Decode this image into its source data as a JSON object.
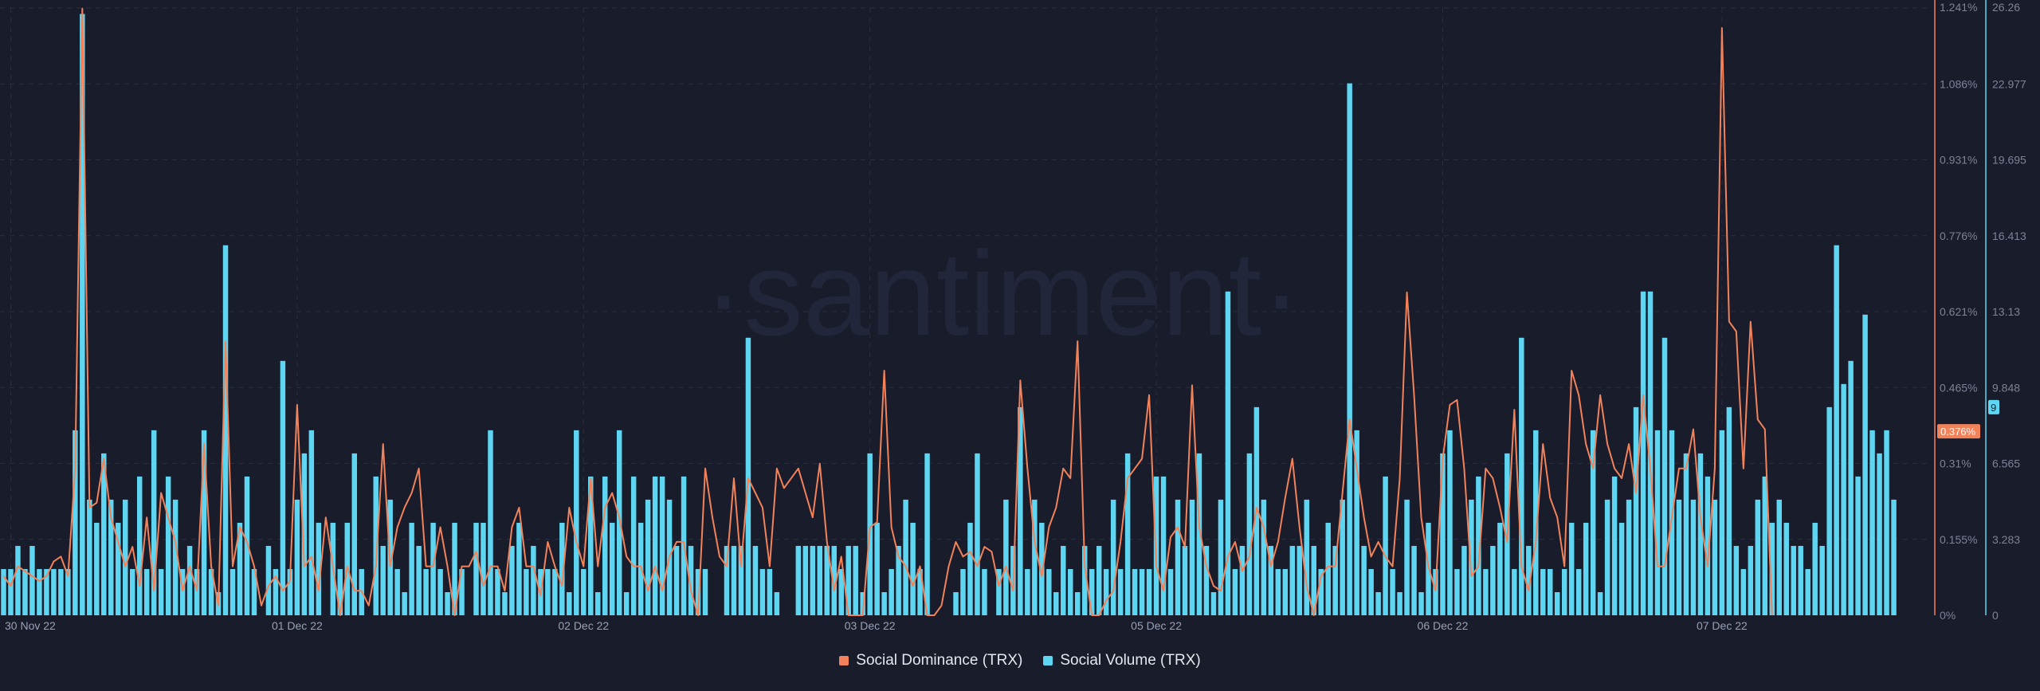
{
  "watermark": "·santiment·",
  "colors": {
    "background": "#191c2b",
    "volume": "#5ed6f2",
    "dominance": "#f2825a",
    "grid": "#2a2e40",
    "axis_text": "#7d8296"
  },
  "chart_data": {
    "type": "bar",
    "title": "",
    "x_tick_labels": [
      "30 Nov 22",
      "01 Dec 22",
      "02 Dec 22",
      "03 Dec 22",
      "05 Dec 22",
      "06 Dec 22",
      "07 Dec 22"
    ],
    "x_tick_positions": [
      1,
      41,
      81,
      121,
      161,
      201,
      240
    ],
    "dominance_axis": {
      "ticks": [
        "0%",
        "0.155%",
        "0.31%",
        "0.465%",
        "0.621%",
        "0.776%",
        "0.931%",
        "1.086%",
        "1.241%"
      ],
      "max": 1.241,
      "current_label": "0.376%",
      "current_value": 0.376
    },
    "volume_axis": {
      "ticks": [
        "0",
        "3.283",
        "6.565",
        "9.848",
        "13.13",
        "16.413",
        "19.695",
        "22.977",
        "26.26"
      ],
      "max": 26.26,
      "current_label": "9",
      "current_value": 9
    },
    "legend_position": "bottom-center",
    "series": [
      {
        "name": "Social Dominance (TRX)",
        "type": "line",
        "color": "#f2825a",
        "values": [
          0.08,
          0.06,
          0.1,
          0.09,
          0.08,
          0.07,
          0.08,
          0.11,
          0.12,
          0.08,
          0.3,
          1.24,
          0.22,
          0.23,
          0.32,
          0.2,
          0.15,
          0.1,
          0.14,
          0.06,
          0.2,
          0.05,
          0.25,
          0.2,
          0.15,
          0.05,
          0.1,
          0.05,
          0.35,
          0.1,
          0.02,
          0.56,
          0.1,
          0.18,
          0.15,
          0.1,
          0.02,
          0.06,
          0.08,
          0.05,
          0.07,
          0.43,
          0.1,
          0.12,
          0.05,
          0.2,
          0.1,
          0.0,
          0.1,
          0.05,
          0.05,
          0.02,
          0.1,
          0.35,
          0.1,
          0.18,
          0.22,
          0.25,
          0.3,
          0.1,
          0.1,
          0.18,
          0.1,
          0.0,
          0.1,
          0.1,
          0.13,
          0.06,
          0.1,
          0.1,
          0.05,
          0.18,
          0.22,
          0.1,
          0.1,
          0.04,
          0.15,
          0.1,
          0.06,
          0.22,
          0.15,
          0.1,
          0.28,
          0.1,
          0.22,
          0.25,
          0.2,
          0.12,
          0.1,
          0.1,
          0.05,
          0.1,
          0.05,
          0.12,
          0.15,
          0.15,
          0.05,
          0.0,
          0.3,
          0.2,
          0.12,
          0.1,
          0.28,
          0.1,
          0.28,
          0.25,
          0.22,
          0.1,
          0.3,
          0.26,
          0.28,
          0.3,
          0.25,
          0.2,
          0.31,
          0.15,
          0.05,
          0.12,
          0.0,
          0.0,
          0.0,
          0.18,
          0.19,
          0.5,
          0.18,
          0.12,
          0.1,
          0.06,
          0.1,
          0.0,
          0.0,
          0.02,
          0.1,
          0.15,
          0.12,
          0.13,
          0.1,
          0.14,
          0.13,
          0.06,
          0.1,
          0.05,
          0.48,
          0.3,
          0.15,
          0.08,
          0.18,
          0.22,
          0.3,
          0.28,
          0.56,
          0.1,
          0.0,
          0.0,
          0.03,
          0.05,
          0.15,
          0.28,
          0.3,
          0.32,
          0.45,
          0.1,
          0.05,
          0.16,
          0.18,
          0.14,
          0.47,
          0.18,
          0.1,
          0.06,
          0.05,
          0.12,
          0.15,
          0.09,
          0.12,
          0.22,
          0.18,
          0.1,
          0.15,
          0.24,
          0.32,
          0.18,
          0.06,
          0.0,
          0.08,
          0.1,
          0.1,
          0.25,
          0.4,
          0.3,
          0.2,
          0.12,
          0.15,
          0.12,
          0.1,
          0.28,
          0.66,
          0.45,
          0.2,
          0.1,
          0.05,
          0.32,
          0.43,
          0.44,
          0.3,
          0.08,
          0.1,
          0.3,
          0.28,
          0.22,
          0.15,
          0.42,
          0.1,
          0.05,
          0.15,
          0.35,
          0.24,
          0.2,
          0.1,
          0.5,
          0.45,
          0.35,
          0.3,
          0.45,
          0.35,
          0.3,
          0.28,
          0.35,
          0.25,
          0.45,
          0.3,
          0.1,
          0.1,
          0.2,
          0.3,
          0.3,
          0.38,
          0.2,
          0.1,
          0.3,
          1.2,
          0.6,
          0.58,
          0.3,
          0.6,
          0.4,
          0.38,
          0.0
        ]
      },
      {
        "name": "Social Volume (TRX)",
        "type": "bar",
        "color": "#5ed6f2",
        "values": [
          2,
          2,
          3,
          2,
          3,
          2,
          2,
          2,
          2,
          2,
          8,
          26,
          5,
          4,
          7,
          5,
          4,
          5,
          2,
          6,
          2,
          8,
          2,
          6,
          5,
          2,
          3,
          2,
          8,
          2,
          1,
          16,
          2,
          4,
          6,
          2,
          0,
          3,
          2,
          11,
          2,
          5,
          7,
          8,
          4,
          0,
          4,
          2,
          4,
          7,
          2,
          0,
          6,
          3,
          5,
          2,
          1,
          4,
          3,
          2,
          4,
          2,
          1,
          4,
          2,
          0,
          4,
          4,
          8,
          2,
          1,
          3,
          4,
          2,
          3,
          2,
          2,
          2,
          4,
          1,
          8,
          2,
          6,
          1,
          6,
          4,
          8,
          1,
          6,
          4,
          5,
          6,
          6,
          5,
          3,
          6,
          3,
          2,
          2,
          0,
          0,
          3,
          3,
          3,
          12,
          3,
          2,
          2,
          1,
          0,
          0,
          3,
          3,
          3,
          3,
          3,
          3,
          2,
          3,
          3,
          1,
          7,
          4,
          1,
          2,
          3,
          5,
          4,
          2,
          7,
          0,
          0,
          0,
          1,
          2,
          4,
          7,
          2,
          0,
          2,
          5,
          3,
          9,
          2,
          5,
          4,
          2,
          1,
          3,
          2,
          1,
          3,
          2,
          3,
          2,
          5,
          2,
          7,
          2,
          2,
          2,
          6,
          6,
          2,
          5,
          3,
          5,
          7,
          3,
          1,
          5,
          14,
          2,
          3,
          7,
          9,
          5,
          3,
          2,
          2,
          3,
          3,
          5,
          3,
          2,
          4,
          3,
          5,
          23,
          8,
          3,
          2,
          1,
          6,
          2,
          1,
          5,
          3,
          1,
          4,
          2,
          7,
          8,
          2,
          3,
          5,
          6,
          2,
          3,
          4,
          7,
          2,
          12,
          3,
          8,
          2,
          2,
          1,
          2,
          4,
          2,
          4,
          8,
          1,
          5,
          6,
          4,
          5,
          9,
          14,
          14,
          8,
          12,
          8,
          5,
          7,
          5,
          7,
          6,
          5,
          8,
          9,
          3,
          2,
          3,
          5,
          6,
          4,
          5,
          4,
          3,
          3,
          2,
          4,
          3,
          9,
          16,
          10,
          11,
          6,
          13,
          8,
          7,
          8,
          5,
          0
        ]
      }
    ]
  }
}
